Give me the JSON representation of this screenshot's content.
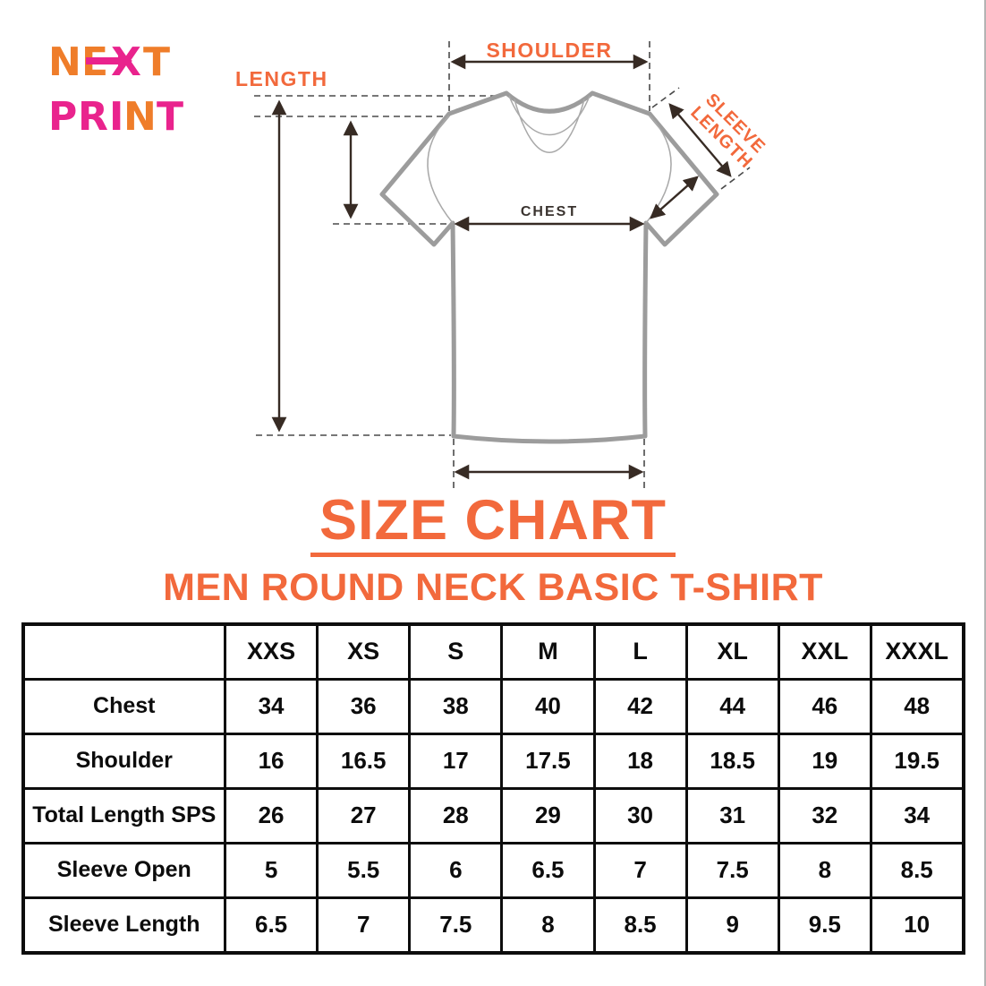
{
  "colors": {
    "label_orange": "#f2693c",
    "logo_orange": "#ef7d2a",
    "logo_magenta": "#e9238d",
    "arrow_dark": "#372b24",
    "shirt_gray": "#9c9c9c",
    "table_border": "#0d0d0d"
  },
  "logo": {
    "word1": [
      {
        "ch": "N",
        "color": "#ef7d2a"
      },
      {
        "ch": "E",
        "color": "#ef7d2a"
      },
      {
        "ch": "X",
        "color": "#e9238d"
      },
      {
        "ch": "T",
        "color": "#ef7d2a"
      }
    ],
    "word2": [
      {
        "ch": "P",
        "color": "#e9238d"
      },
      {
        "ch": "R",
        "color": "#e9238d"
      },
      {
        "ch": "I",
        "color": "#e9238d"
      },
      {
        "ch": "N",
        "color": "#ef7d2a"
      },
      {
        "ch": "T",
        "color": "#e9238d"
      }
    ],
    "arrow_color": "#e9238d"
  },
  "diagram": {
    "shoulder_label": "SHOULDER",
    "length_label": "LENGTH",
    "sleeve_label_line1": "SLEEVE",
    "sleeve_label_line2": "LENGTH",
    "chest_label": "CHEST"
  },
  "title": "SIZE CHART",
  "subtitle": "MEN ROUND NECK BASIC T-SHIRT",
  "table": {
    "corner": "",
    "sizes": [
      "XXS",
      "XS",
      "S",
      "M",
      "L",
      "XL",
      "XXL",
      "XXXL"
    ],
    "rows": [
      {
        "label": "Chest",
        "values": [
          "34",
          "36",
          "38",
          "40",
          "42",
          "44",
          "46",
          "48"
        ]
      },
      {
        "label": "Shoulder",
        "values": [
          "16",
          "16.5",
          "17",
          "17.5",
          "18",
          "18.5",
          "19",
          "19.5"
        ]
      },
      {
        "label": "Total Length SPS",
        "values": [
          "26",
          "27",
          "28",
          "29",
          "30",
          "31",
          "32",
          "34"
        ]
      },
      {
        "label": "Sleeve Open",
        "values": [
          "5",
          "5.5",
          "6",
          "6.5",
          "7",
          "7.5",
          "8",
          "8.5"
        ]
      },
      {
        "label": "Sleeve Length",
        "values": [
          "6.5",
          "7",
          "7.5",
          "8",
          "8.5",
          "9",
          "9.5",
          "10"
        ]
      }
    ]
  },
  "chart_data": {
    "type": "table",
    "title": "SIZE CHART",
    "subtitle": "MEN ROUND NECK BASIC T-SHIRT",
    "columns": [
      "",
      "XXS",
      "XS",
      "S",
      "M",
      "L",
      "XL",
      "XXL",
      "XXXL"
    ],
    "rows": [
      [
        "Chest",
        34,
        36,
        38,
        40,
        42,
        44,
        46,
        48
      ],
      [
        "Shoulder",
        16,
        16.5,
        17,
        17.5,
        18,
        18.5,
        19,
        19.5
      ],
      [
        "Total Length SPS",
        26,
        27,
        28,
        29,
        30,
        31,
        32,
        34
      ],
      [
        "Sleeve Open",
        5,
        5.5,
        6,
        6.5,
        7,
        7.5,
        8,
        8.5
      ],
      [
        "Sleeve Length",
        6.5,
        7,
        7.5,
        8,
        8.5,
        9,
        9.5,
        10
      ]
    ]
  }
}
